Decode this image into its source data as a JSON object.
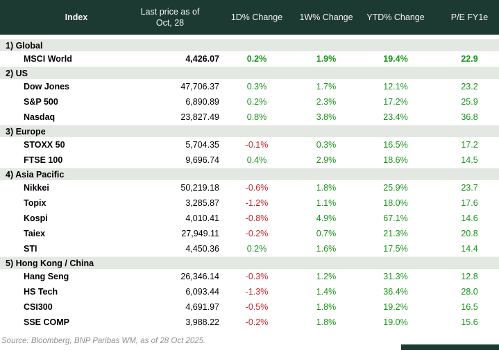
{
  "table": {
    "header": {
      "index": "Index",
      "last_price_line1": "Last price as of",
      "last_price_line2": "Oct, 28",
      "change_1d": "1D% Change",
      "change_1w": "1W% Change",
      "change_ytd": "YTD% Change",
      "pe": "P/E FY1e"
    },
    "sections": [
      {
        "label": "1) Global",
        "rows": [
          {
            "name": "MSCI World",
            "price": "4,426.07",
            "d1": "0.2%",
            "w1": "1.9%",
            "ytd": "19.4%",
            "pe": "22.9",
            "bold": true
          }
        ]
      },
      {
        "label": "2) US",
        "rows": [
          {
            "name": "Dow Jones",
            "price": "47,706.37",
            "d1": "0.3%",
            "w1": "1.7%",
            "ytd": "12.1%",
            "pe": "23.2",
            "bold": false
          },
          {
            "name": "S&P 500",
            "price": "6,890.89",
            "d1": "0.2%",
            "w1": "2.3%",
            "ytd": "17.2%",
            "pe": "25.9",
            "bold": false
          },
          {
            "name": "Nasdaq",
            "price": "23,827.49",
            "d1": "0.8%",
            "w1": "3.8%",
            "ytd": "23.4%",
            "pe": "36.8",
            "bold": false
          }
        ]
      },
      {
        "label": "3) Europe",
        "rows": [
          {
            "name": "STOXX 50",
            "price": "5,704.35",
            "d1": "-0.1%",
            "w1": "0.3%",
            "ytd": "16.5%",
            "pe": "17.2",
            "bold": false
          },
          {
            "name": "FTSE 100",
            "price": "9,696.74",
            "d1": "0.4%",
            "w1": "2.9%",
            "ytd": "18.6%",
            "pe": "14.5",
            "bold": false
          }
        ]
      },
      {
        "label": "4) Asia Pacific",
        "rows": [
          {
            "name": "Nikkei",
            "price": "50,219.18",
            "d1": "-0.6%",
            "w1": "1.8%",
            "ytd": "25.9%",
            "pe": "23.7",
            "bold": false
          },
          {
            "name": "Topix",
            "price": "3,285.87",
            "d1": "-1.2%",
            "w1": "1.1%",
            "ytd": "18.0%",
            "pe": "17.6",
            "bold": false
          },
          {
            "name": "Kospi",
            "price": "4,010.41",
            "d1": "-0.8%",
            "w1": "4.9%",
            "ytd": "67.1%",
            "pe": "14.6",
            "bold": false
          },
          {
            "name": "Taiex",
            "price": "27,949.11",
            "d1": "-0.2%",
            "w1": "0.7%",
            "ytd": "21.3%",
            "pe": "20.8",
            "bold": false
          },
          {
            "name": "STI",
            "price": "4,450.36",
            "d1": "0.2%",
            "w1": "1.6%",
            "ytd": "17.5%",
            "pe": "14.4",
            "bold": false
          }
        ]
      },
      {
        "label": "5) Hong Kong / China",
        "rows": [
          {
            "name": "Hang Seng",
            "price": "26,346.14",
            "d1": "-0.3%",
            "w1": "1.2%",
            "ytd": "31.3%",
            "pe": "12.8",
            "bold": false
          },
          {
            "name": "HS Tech",
            "price": "6,093.44",
            "d1": "-1.3%",
            "w1": "1.4%",
            "ytd": "36.4%",
            "pe": "28.0",
            "bold": false
          },
          {
            "name": "CSI300",
            "price": "4,691.97",
            "d1": "-0.5%",
            "w1": "1.8%",
            "ytd": "19.2%",
            "pe": "16.5",
            "bold": false
          },
          {
            "name": "SSE COMP",
            "price": "3,988.22",
            "d1": "-0.2%",
            "w1": "1.8%",
            "ytd": "19.0%",
            "pe": "15.6",
            "bold": false
          }
        ]
      }
    ]
  },
  "source_note": "Source: Bloomberg, BNP Paribas WM, as of 28 Oct 2025.",
  "colors": {
    "header_bg": "#1d3a32",
    "header_text": "#f2f4f0",
    "section_bg": "#e4e8e3",
    "positive": "#189418",
    "negative": "#c5262c",
    "source_text": "#8f928f"
  }
}
